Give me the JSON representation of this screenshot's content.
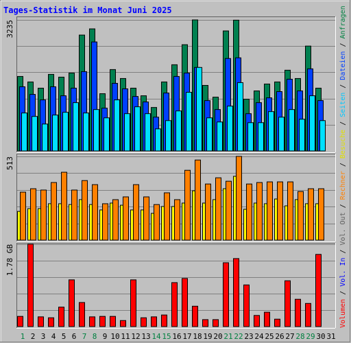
{
  "legend": {
    "separator": " / ",
    "items": [
      {
        "label": "Volumen",
        "color": "#ff0000"
      },
      {
        "label": "Vol. In",
        "color": "#0000ff"
      },
      {
        "label": "Vol. Out",
        "color": "#606060"
      },
      {
        "label": "Rechner",
        "color": "#ff8000"
      },
      {
        "label": "Besuche",
        "color": "#e0e000"
      },
      {
        "label": "Seiten",
        "color": "#00c8ff"
      },
      {
        "label": "Dateien",
        "color": "#0040ff"
      },
      {
        "label": "Anfragen",
        "color": "#008040"
      }
    ]
  },
  "chart_data": [
    {
      "type": "bar",
      "title": "Tages-Statistik im Monat Juni 2025",
      "ylim": [
        0,
        3235
      ],
      "yticks": [
        3235
      ],
      "grid_divisions": 5,
      "series": [
        {
          "color": "#008050",
          "values": [
            1839,
            1703,
            1550,
            1890,
            1822,
            1924,
            2861,
            3014,
            1413,
            2009,
            1788,
            1550,
            1362,
            1073,
            1703,
            2128,
            2623,
            3235,
            1618,
            1328,
            2963,
            3229,
            1277,
            1482,
            1652,
            1703,
            1993,
            1788,
            2589,
            1550,
            null
          ]
        },
        {
          "color": "#0040ff",
          "values": [
            1584,
            1396,
            1260,
            1584,
            1362,
            1550,
            1958,
            2691,
            1056,
            1669,
            1533,
            1345,
            1209,
            834,
            1430,
            1839,
            1924,
            2061,
            1243,
            1022,
            2282,
            2299,
            920,
            1192,
            1311,
            1465,
            1771,
            1482,
            2027,
            1243,
            null
          ]
        },
        {
          "color": "#00e0ff",
          "values": [
            937,
            852,
            664,
            886,
            954,
            1192,
            937,
            1022,
            817,
            1260,
            920,
            1090,
            920,
            545,
            749,
            988,
            1448,
            2061,
            817,
            715,
            1107,
            1686,
            698,
            698,
            971,
            834,
            1022,
            783,
            1362,
            749,
            null
          ]
        }
      ]
    },
    {
      "type": "bar",
      "ylim": [
        0,
        513
      ],
      "yticks": [
        513
      ],
      "grid_divisions": 5,
      "series": [
        {
          "color": "#ffff00",
          "values": [
            176,
            193,
            193,
            223,
            223,
            218,
            248,
            218,
            185,
            227,
            214,
            185,
            185,
            164,
            206,
            206,
            227,
            302,
            227,
            248,
            315,
            391,
            189,
            227,
            223,
            252,
            210,
            248,
            223,
            223,
            null
          ]
        },
        {
          "color": "#ff8000",
          "values": [
            294,
            315,
            307,
            353,
            416,
            307,
            365,
            340,
            223,
            248,
            265,
            340,
            265,
            218,
            290,
            248,
            428,
            491,
            344,
            382,
            361,
            513,
            344,
            353,
            357,
            357,
            357,
            298,
            315,
            315,
            null
          ]
        }
      ]
    },
    {
      "type": "bar",
      "ylim": [
        0,
        1.78
      ],
      "yticks": [
        {
          "value": 1.78,
          "label": "1.78 GB"
        }
      ],
      "grid_divisions": 5,
      "categories": [
        "1",
        "2",
        "3",
        "4",
        "5",
        "6",
        "7",
        "8",
        "9",
        "10",
        "11",
        "12",
        "13",
        "14",
        "15",
        "16",
        "17",
        "18",
        "19",
        "20",
        "21",
        "22",
        "23",
        "24",
        "25",
        "26",
        "27",
        "28",
        "29",
        "30",
        "31"
      ],
      "category_colors": [
        "#008040",
        "#000000",
        "#000000",
        "#000000",
        "#000000",
        "#000000",
        "#008040",
        "#008040",
        "#000000",
        "#000000",
        "#000000",
        "#000000",
        "#000000",
        "#008040",
        "#008040",
        "#000000",
        "#000000",
        "#000000",
        "#000000",
        "#000000",
        "#008040",
        "#008040",
        "#000000",
        "#000000",
        "#000000",
        "#000000",
        "#000000",
        "#008040",
        "#008040",
        "#000000",
        "#000000"
      ],
      "series": [
        {
          "color": "#ff0000",
          "values": [
            0.22,
            1.78,
            0.21,
            0.19,
            0.42,
            1.01,
            0.52,
            0.21,
            0.22,
            0.22,
            0.13,
            1.01,
            0.19,
            0.21,
            0.25,
            0.95,
            1.04,
            0.44,
            0.15,
            0.15,
            1.38,
            1.47,
            0.9,
            0.24,
            0.31,
            0.16,
            0.99,
            0.59,
            0.5,
            1.56,
            null
          ]
        }
      ]
    }
  ]
}
